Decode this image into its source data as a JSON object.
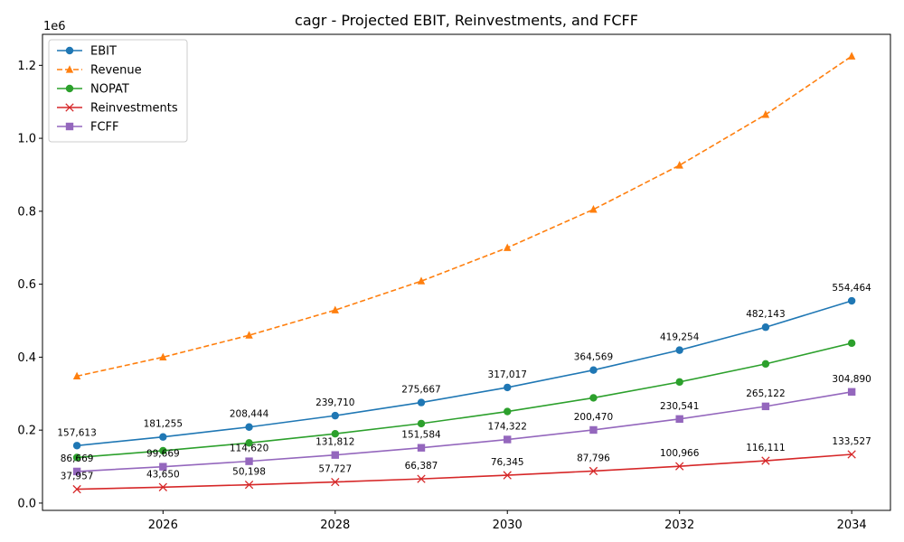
{
  "chart_data": {
    "type": "line",
    "title": "cagr - Projected EBIT, Reinvestments, and FCFF",
    "xlabel": "",
    "ylabel": "",
    "y_offset_text": "1e6",
    "x": [
      2025,
      2026,
      2027,
      2028,
      2029,
      2030,
      2031,
      2032,
      2033,
      2034
    ],
    "xlim": [
      2024.6,
      2034.45
    ],
    "ylim": [
      -20000,
      1285000
    ],
    "x_ticks": [
      2026,
      2028,
      2030,
      2032,
      2034
    ],
    "x_tick_labels": [
      "2026",
      "2028",
      "2030",
      "2032",
      "2034"
    ],
    "y_ticks": [
      0,
      200000,
      400000,
      600000,
      800000,
      1000000,
      1200000
    ],
    "y_tick_labels": [
      "0.0",
      "0.2",
      "0.4",
      "0.6",
      "0.8",
      "1.0",
      "1.2"
    ],
    "grid": false,
    "legend_position": "upper-left",
    "series": [
      {
        "name": "EBIT",
        "color": "#1f77b4",
        "linestyle": "solid",
        "marker": "circle",
        "values": [
          157613,
          181255,
          208444,
          239710,
          275667,
          317017,
          364569,
          419254,
          482143,
          554464
        ],
        "annotated": true,
        "labels": [
          "157,613",
          "181,255",
          "208,444",
          "239,710",
          "275,667",
          "317,017",
          "364,569",
          "419,254",
          "482,143",
          "554,464"
        ]
      },
      {
        "name": "Revenue",
        "color": "#ff7f0e",
        "linestyle": "dashed",
        "marker": "triangle",
        "values": [
          348000,
          400000,
          460000,
          529000,
          608500,
          700000,
          805000,
          926000,
          1065000,
          1225000
        ],
        "annotated": false,
        "labels": []
      },
      {
        "name": "NOPAT",
        "color": "#2ca02c",
        "linestyle": "solid",
        "marker": "circle",
        "values": [
          125000,
          143500,
          165000,
          190000,
          218000,
          251000,
          288500,
          332000,
          381500,
          438500
        ],
        "annotated": false,
        "labels": []
      },
      {
        "name": "Reinvestments",
        "color": "#d62728",
        "linestyle": "solid",
        "marker": "x",
        "values": [
          37957,
          43650,
          50198,
          57727,
          66387,
          76345,
          87796,
          100966,
          116111,
          133527
        ],
        "annotated": true,
        "labels": [
          "37,957",
          "43,650",
          "50,198",
          "57,727",
          "66,387",
          "76,345",
          "87,796",
          "100,966",
          "116,111",
          "133,527"
        ]
      },
      {
        "name": "FCFF",
        "color": "#9467bd",
        "linestyle": "solid",
        "marker": "square",
        "values": [
          86669,
          99669,
          114620,
          131812,
          151584,
          174322,
          200470,
          230541,
          265122,
          304890
        ],
        "annotated": true,
        "labels": [
          "86,669",
          "99,669",
          "114,620",
          "131,812",
          "151,584",
          "174,322",
          "200,470",
          "230,541",
          "265,122",
          "304,890"
        ]
      }
    ]
  }
}
